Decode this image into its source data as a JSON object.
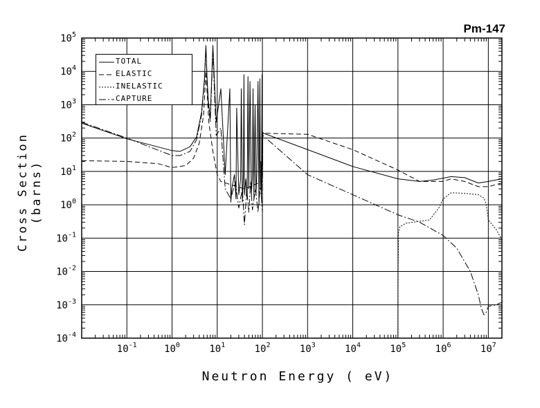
{
  "chart_data": {
    "type": "line",
    "title": "Pm-147",
    "xlabel": "Neutron Energy ( eV)",
    "ylabel": "Cross Section (barns)",
    "xscale": "log",
    "yscale": "log",
    "xlim": [
      0.01,
      20000000
    ],
    "ylim": [
      0.0001,
      100000
    ],
    "grid": true,
    "legend_position": "top-left",
    "x_ticks": [
      {
        "base": "10",
        "exp": "-1",
        "value": 0.1
      },
      {
        "base": "10",
        "exp": "0",
        "value": 1
      },
      {
        "base": "10",
        "exp": "1",
        "value": 10
      },
      {
        "base": "10",
        "exp": "2",
        "value": 100
      },
      {
        "base": "10",
        "exp": "3",
        "value": 1000
      },
      {
        "base": "10",
        "exp": "4",
        "value": 10000
      },
      {
        "base": "10",
        "exp": "5",
        "value": 100000
      },
      {
        "base": "10",
        "exp": "6",
        "value": 1000000
      },
      {
        "base": "10",
        "exp": "7",
        "value": 10000000
      }
    ],
    "y_ticks": [
      {
        "base": "10",
        "exp": "-4",
        "value": 0.0001
      },
      {
        "base": "10",
        "exp": "-3",
        "value": 0.001
      },
      {
        "base": "10",
        "exp": "-2",
        "value": 0.01
      },
      {
        "base": "10",
        "exp": "-1",
        "value": 0.1
      },
      {
        "base": "10",
        "exp": "0",
        "value": 1
      },
      {
        "base": "10",
        "exp": "1",
        "value": 10
      },
      {
        "base": "10",
        "exp": "2",
        "value": 100
      },
      {
        "base": "10",
        "exp": "3",
        "value": 1000
      },
      {
        "base": "10",
        "exp": "4",
        "value": 10000
      },
      {
        "base": "10",
        "exp": "5",
        "value": 100000
      }
    ],
    "series": [
      {
        "name": "TOTAL",
        "dash": "solid",
        "x": [
          0.01,
          0.1,
          1,
          1.5,
          2.5,
          3.5,
          4.5,
          5.2,
          5.6,
          6.0,
          6.4,
          7.0,
          8.0,
          9.5,
          12,
          15,
          19,
          20,
          21,
          24,
          26,
          27,
          30,
          33,
          34,
          36,
          38,
          39,
          40,
          43,
          46,
          48,
          50,
          53,
          57,
          60,
          62,
          65,
          69,
          72,
          75,
          80,
          84,
          88,
          90,
          92,
          95,
          98,
          100,
          102,
          105,
          1000,
          10000,
          100000,
          300000,
          600000,
          1500000,
          3000000,
          6000000,
          10000000,
          20000000
        ],
        "y": [
          280,
          95,
          42,
          40,
          55,
          110,
          600,
          6000,
          60000,
          5000,
          1200,
          400,
          60000,
          300,
          3000,
          8,
          3000,
          1.2,
          3,
          8,
          1.5,
          800,
          2,
          6,
          3000,
          1.2,
          8,
          8000,
          2,
          6,
          1.5,
          7000,
          3,
          5000,
          2,
          7,
          3000,
          1.5,
          1000,
          2,
          8,
          5000,
          1,
          6000,
          4,
          20,
          1.5,
          8000,
          4,
          150,
          140,
          45,
          14,
          6,
          5,
          5.5,
          7,
          6.5,
          4.5,
          5,
          6
        ]
      },
      {
        "name": "ELASTIC",
        "dash": "long-dash",
        "x": [
          0.01,
          0.1,
          0.5,
          1,
          2,
          3,
          4,
          5,
          5.6,
          6.5,
          8,
          10,
          12,
          20,
          40,
          100,
          102,
          1000,
          10000,
          100000,
          300000,
          1000000,
          1500000,
          3000000,
          6000000,
          10000000,
          20000000
        ],
        "y": [
          21,
          20,
          17,
          13,
          15,
          25,
          70,
          500,
          10000,
          300,
          40,
          8,
          5,
          4,
          3,
          5,
          140,
          130,
          45,
          11,
          5,
          5,
          6,
          5,
          3.5,
          3.5,
          4.5
        ]
      },
      {
        "name": "INELASTIC",
        "dash": "short-dash",
        "x": [
          98000,
          100000,
          101000,
          103000,
          110000,
          150000,
          300000,
          500000,
          800000,
          1000000,
          1500000,
          3000000,
          6000000,
          8000000,
          9000000,
          10000000,
          15000000,
          20000000
        ],
        "y": [
          0.0001,
          0.0001,
          0.01,
          0.15,
          0.22,
          0.28,
          0.32,
          0.35,
          0.8,
          1.5,
          2.3,
          2.2,
          2.0,
          1.6,
          1.0,
          0.35,
          0.18,
          0.09
        ]
      },
      {
        "name": "CAPTURE",
        "dash": "dash-dot",
        "x": [
          0.01,
          0.1,
          1,
          1.5,
          2.5,
          3.5,
          4.5,
          5.2,
          5.6,
          6.2,
          7.0,
          8.0,
          9.5,
          12,
          15,
          20,
          25,
          30,
          36,
          40,
          45,
          50,
          55,
          60,
          70,
          80,
          90,
          100,
          102,
          1000,
          10000,
          100000,
          300000,
          1000000,
          2000000,
          4000000,
          6000000,
          7000000,
          8000000,
          9000000,
          10000000,
          15000000,
          20000000
        ],
        "y": [
          300,
          100,
          30,
          30,
          40,
          90,
          500,
          5000,
          50000,
          1500,
          300,
          40000,
          120,
          200,
          3,
          1.5,
          5,
          0.8,
          3,
          0.25,
          3,
          0.6,
          5,
          0.7,
          3,
          0.6,
          4,
          0.6,
          120,
          8,
          2,
          0.5,
          0.3,
          0.12,
          0.05,
          0.01,
          0.002,
          0.0008,
          0.0005,
          0.0006,
          0.0009,
          0.001,
          0.0012
        ]
      }
    ]
  }
}
